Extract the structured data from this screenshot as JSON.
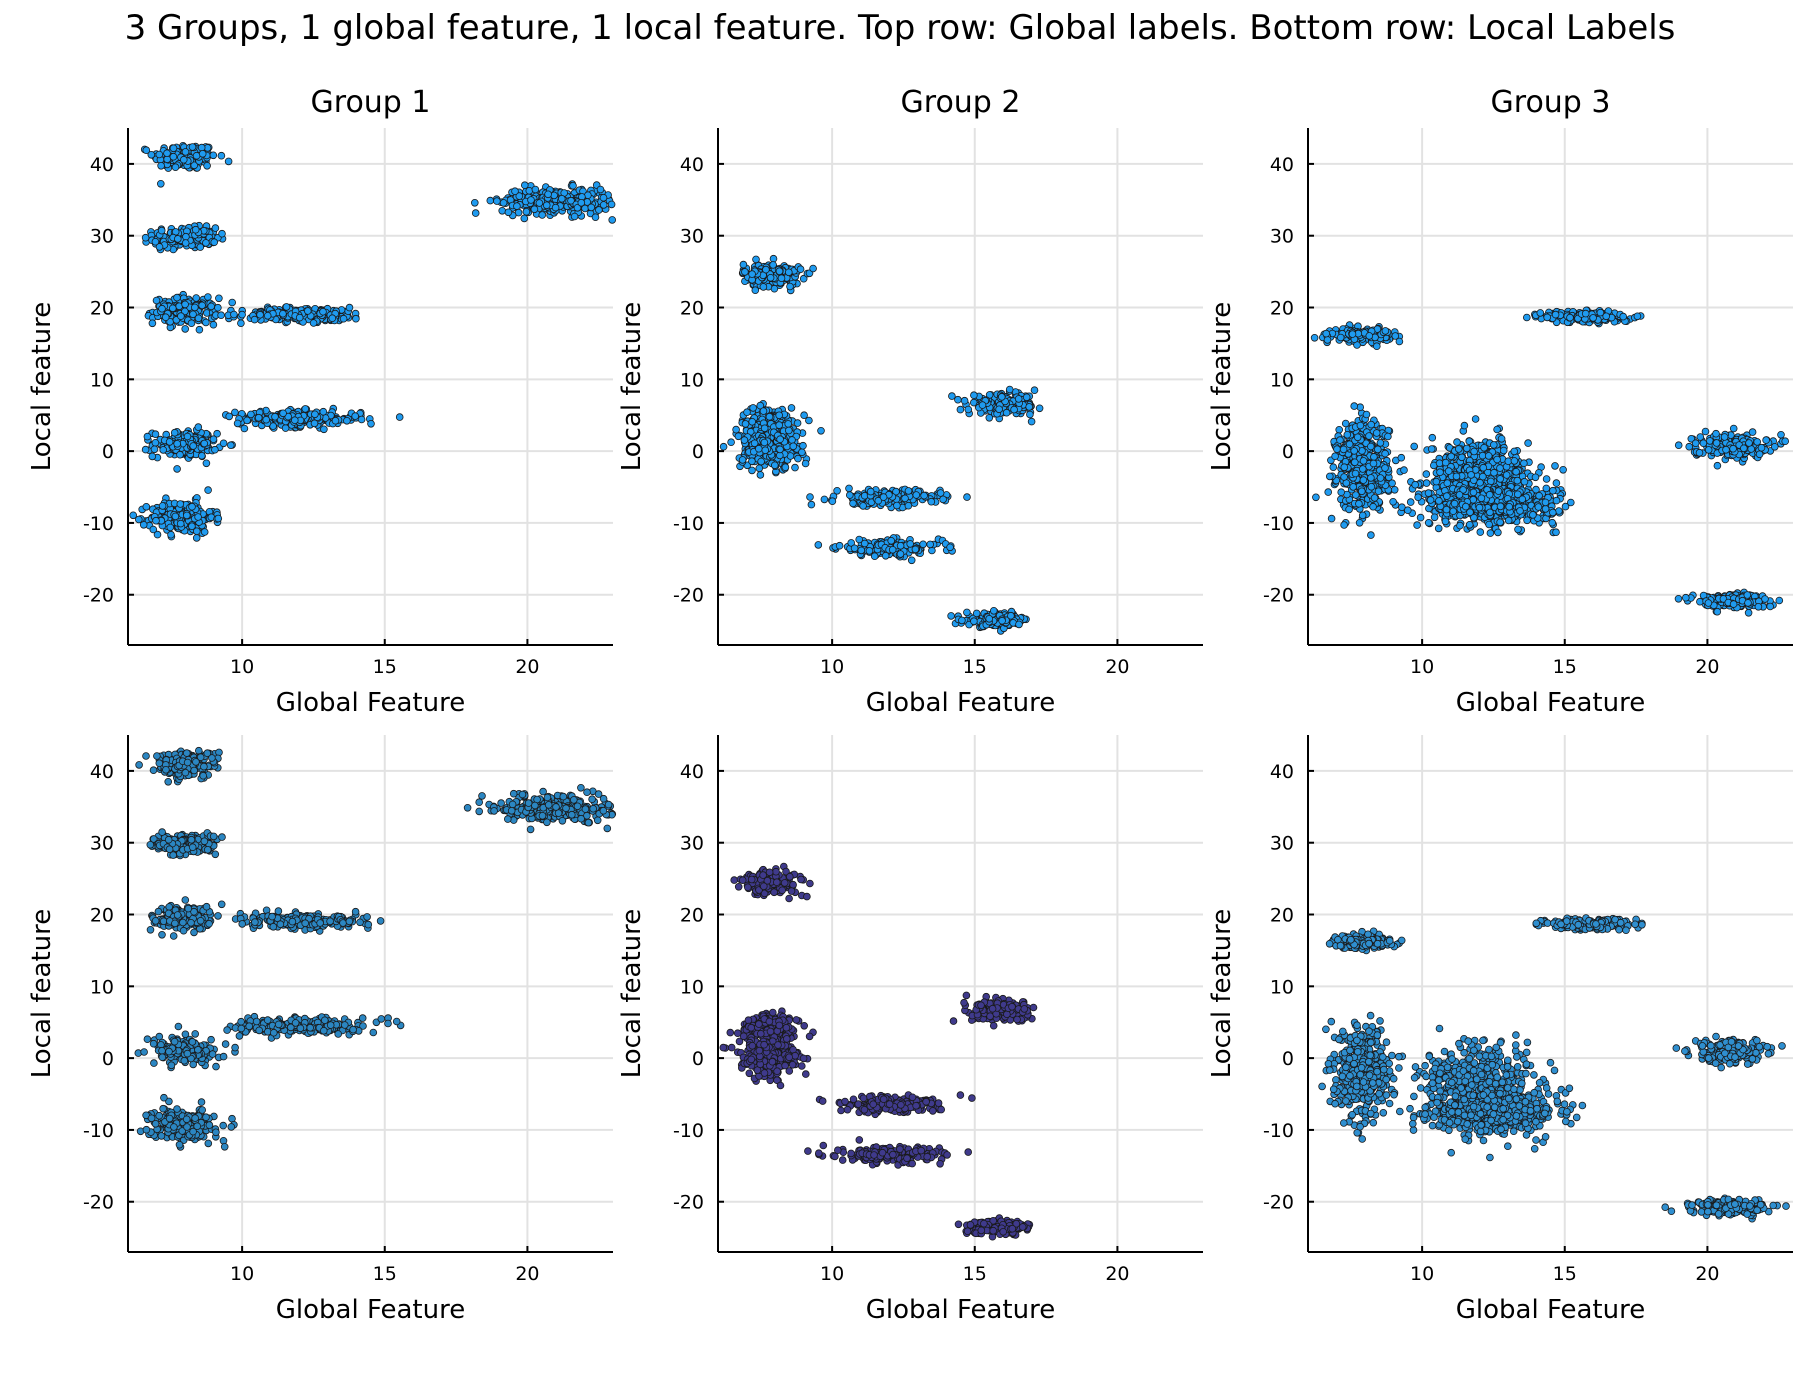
{
  "title": "3 Groups, 1 global feature, 1 local feature. Top row: Global labels. Bottom row: Local Labels",
  "colors": {
    "global_points": "#1f9bf0",
    "local_group1": "#2b86c2",
    "local_group2": "#3f3a8c",
    "local_group3": "#2f8fd0",
    "point_edge": "#1a1a1a",
    "grid": "#e2e2e2",
    "axis": "#000000"
  },
  "chart_data": [
    {
      "type": "scatter",
      "row": "top",
      "group": "Group 1",
      "title": "Group 1",
      "xlabel": "Global Feature",
      "ylabel": "Local feature",
      "xlim": [
        6,
        23
      ],
      "ylim": [
        -27,
        45
      ],
      "xticks": [
        10,
        15,
        20
      ],
      "yticks": [
        40,
        30,
        20,
        10,
        0,
        -10,
        -20
      ],
      "tick_labels_x": [
        "10",
        "15",
        "20"
      ],
      "tick_labels_y": [
        "40",
        "30",
        "20",
        "10",
        "0",
        "-10",
        "-20"
      ],
      "grid": true,
      "clusters": [
        {
          "cx": 8.0,
          "cy": 41.0,
          "sx": 0.55,
          "sy": 0.9
        },
        {
          "cx": 8.0,
          "cy": 29.7,
          "sx": 0.55,
          "sy": 0.7
        },
        {
          "cx": 8.0,
          "cy": 19.5,
          "sx": 0.55,
          "sy": 0.9
        },
        {
          "cx": 8.0,
          "cy": 1.0,
          "sx": 0.55,
          "sy": 0.9
        },
        {
          "cx": 7.9,
          "cy": -9.2,
          "sx": 0.55,
          "sy": 1.1
        },
        {
          "cx": 12.2,
          "cy": 19.0,
          "sx": 1.1,
          "sy": 0.5
        },
        {
          "cx": 12.0,
          "cy": 4.5,
          "sx": 1.1,
          "sy": 0.55
        },
        {
          "cx": 21.0,
          "cy": 34.8,
          "sx": 0.95,
          "sy": 0.9
        }
      ]
    },
    {
      "type": "scatter",
      "row": "top",
      "group": "Group 2",
      "title": "Group 2",
      "xlabel": "Global Feature",
      "ylabel": "Local feature",
      "xlim": [
        6,
        23
      ],
      "ylim": [
        -27,
        45
      ],
      "xticks": [
        10,
        15,
        20
      ],
      "yticks": [
        40,
        30,
        20,
        10,
        0,
        -10,
        -20
      ],
      "tick_labels_x": [
        "10",
        "15",
        "20"
      ],
      "tick_labels_y": [
        "40",
        "30",
        "20",
        "10",
        "0",
        "-10",
        "-20"
      ],
      "grid": true,
      "clusters": [
        {
          "cx": 7.9,
          "cy": 24.5,
          "sx": 0.5,
          "sy": 0.8
        },
        {
          "cx": 7.8,
          "cy": 3.5,
          "sx": 0.5,
          "sy": 1.3
        },
        {
          "cx": 7.8,
          "cy": 0.0,
          "sx": 0.5,
          "sy": 1.3
        },
        {
          "cx": 12.0,
          "cy": -6.5,
          "sx": 0.9,
          "sy": 0.55
        },
        {
          "cx": 12.0,
          "cy": -13.5,
          "sx": 0.9,
          "sy": 0.55
        },
        {
          "cx": 16.0,
          "cy": 6.5,
          "sx": 0.6,
          "sy": 0.7
        },
        {
          "cx": 15.8,
          "cy": -23.5,
          "sx": 0.55,
          "sy": 0.45
        }
      ]
    },
    {
      "type": "scatter",
      "row": "top",
      "group": "Group 3",
      "title": "Group 3",
      "xlabel": "Global Feature",
      "ylabel": "Local feature",
      "xlim": [
        6,
        23
      ],
      "ylim": [
        -27,
        45
      ],
      "xticks": [
        10,
        15,
        20
      ],
      "yticks": [
        40,
        30,
        20,
        10,
        0,
        -10,
        -20
      ],
      "tick_labels_x": [
        "10",
        "15",
        "20"
      ],
      "tick_labels_y": [
        "40",
        "30",
        "20",
        "10",
        "0",
        "-10",
        "-20"
      ],
      "grid": true,
      "clusters": [
        {
          "cx": 7.9,
          "cy": 16.2,
          "sx": 0.5,
          "sy": 0.45
        },
        {
          "cx": 7.9,
          "cy": -2.0,
          "sx": 0.45,
          "sy": 3.0
        },
        {
          "cx": 12.0,
          "cy": -3.5,
          "sx": 0.9,
          "sy": 2.6
        },
        {
          "cx": 12.5,
          "cy": -7.5,
          "sx": 1.1,
          "sy": 1.4
        },
        {
          "cx": 15.8,
          "cy": 18.7,
          "sx": 0.75,
          "sy": 0.4
        },
        {
          "cx": 20.8,
          "cy": 0.8,
          "sx": 0.65,
          "sy": 0.8
        },
        {
          "cx": 20.8,
          "cy": -20.8,
          "sx": 0.65,
          "sy": 0.5
        }
      ]
    },
    {
      "type": "scatter",
      "row": "bottom",
      "group": "Group 1",
      "xlabel": "Global Feature",
      "ylabel": "Local feature",
      "xlim": [
        6,
        23
      ],
      "ylim": [
        -27,
        45
      ],
      "xticks": [
        10,
        15,
        20
      ],
      "yticks": [
        40,
        30,
        20,
        10,
        0,
        -10,
        -20
      ],
      "tick_labels_x": [
        "10",
        "15",
        "20"
      ],
      "tick_labels_y": [
        "40",
        "30",
        "20",
        "10",
        "0",
        "-10",
        "-20"
      ],
      "grid": true,
      "clusters": [
        {
          "cx": 8.0,
          "cy": 41.0,
          "sx": 0.55,
          "sy": 0.9
        },
        {
          "cx": 8.0,
          "cy": 29.7,
          "sx": 0.55,
          "sy": 0.7
        },
        {
          "cx": 8.0,
          "cy": 19.5,
          "sx": 0.55,
          "sy": 0.9
        },
        {
          "cx": 8.0,
          "cy": 1.0,
          "sx": 0.55,
          "sy": 0.9
        },
        {
          "cx": 7.9,
          "cy": -9.2,
          "sx": 0.55,
          "sy": 1.1
        },
        {
          "cx": 12.2,
          "cy": 19.0,
          "sx": 1.1,
          "sy": 0.5
        },
        {
          "cx": 12.0,
          "cy": 4.5,
          "sx": 1.1,
          "sy": 0.55
        },
        {
          "cx": 21.0,
          "cy": 34.8,
          "sx": 0.95,
          "sy": 0.9
        }
      ]
    },
    {
      "type": "scatter",
      "row": "bottom",
      "group": "Group 2",
      "xlabel": "Global Feature",
      "ylabel": "Local feature",
      "xlim": [
        6,
        23
      ],
      "ylim": [
        -27,
        45
      ],
      "xticks": [
        10,
        15,
        20
      ],
      "yticks": [
        40,
        30,
        20,
        10,
        0,
        -10,
        -20
      ],
      "tick_labels_x": [
        "10",
        "15",
        "20"
      ],
      "tick_labels_y": [
        "40",
        "30",
        "20",
        "10",
        "0",
        "-10",
        "-20"
      ],
      "grid": true,
      "clusters": [
        {
          "cx": 7.9,
          "cy": 24.5,
          "sx": 0.5,
          "sy": 0.8
        },
        {
          "cx": 7.8,
          "cy": 3.5,
          "sx": 0.5,
          "sy": 1.3
        },
        {
          "cx": 7.8,
          "cy": 0.0,
          "sx": 0.5,
          "sy": 1.3
        },
        {
          "cx": 12.0,
          "cy": -6.5,
          "sx": 0.9,
          "sy": 0.55
        },
        {
          "cx": 12.0,
          "cy": -13.5,
          "sx": 0.9,
          "sy": 0.55
        },
        {
          "cx": 16.0,
          "cy": 6.5,
          "sx": 0.6,
          "sy": 0.7
        },
        {
          "cx": 15.8,
          "cy": -23.5,
          "sx": 0.55,
          "sy": 0.45
        }
      ]
    },
    {
      "type": "scatter",
      "row": "bottom",
      "group": "Group 3",
      "xlabel": "Global Feature",
      "ylabel": "Local feature",
      "xlim": [
        6,
        23
      ],
      "ylim": [
        -27,
        45
      ],
      "xticks": [
        10,
        15,
        20
      ],
      "yticks": [
        40,
        30,
        20,
        10,
        0,
        -10,
        -20
      ],
      "tick_labels_x": [
        "10",
        "15",
        "20"
      ],
      "tick_labels_y": [
        "40",
        "30",
        "20",
        "10",
        "0",
        "-10",
        "-20"
      ],
      "grid": true,
      "clusters": [
        {
          "cx": 7.9,
          "cy": 16.2,
          "sx": 0.5,
          "sy": 0.45
        },
        {
          "cx": 7.9,
          "cy": -2.0,
          "sx": 0.45,
          "sy": 3.0
        },
        {
          "cx": 12.0,
          "cy": -3.5,
          "sx": 0.9,
          "sy": 2.6
        },
        {
          "cx": 12.5,
          "cy": -7.5,
          "sx": 1.1,
          "sy": 1.4
        },
        {
          "cx": 15.8,
          "cy": 18.7,
          "sx": 0.75,
          "sy": 0.4
        },
        {
          "cx": 20.8,
          "cy": 0.8,
          "sx": 0.65,
          "sy": 0.8
        },
        {
          "cx": 20.8,
          "cy": -20.8,
          "sx": 0.65,
          "sy": 0.5
        }
      ]
    }
  ]
}
